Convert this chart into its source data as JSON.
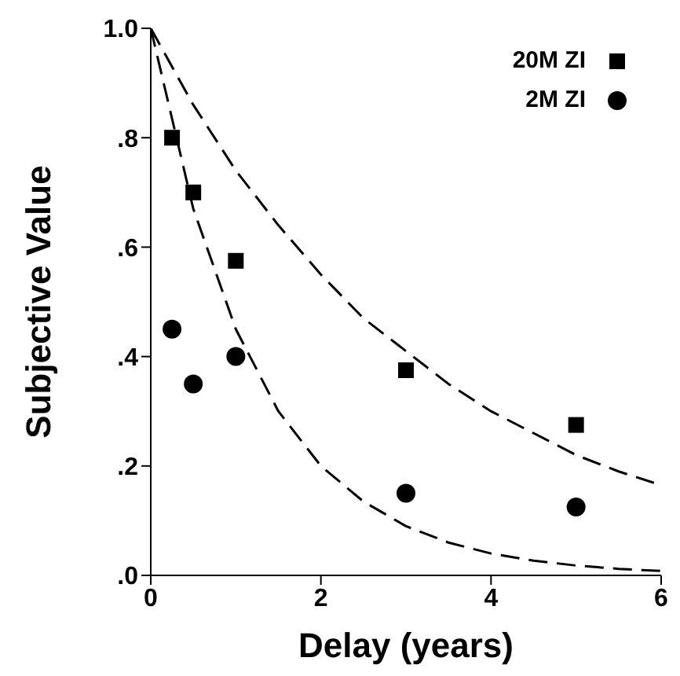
{
  "chart_data": {
    "type": "scatter",
    "xlabel": "Delay (years)",
    "ylabel": "Subjective Value",
    "xlim": [
      0,
      6
    ],
    "xticks": [
      0,
      2,
      4,
      6
    ],
    "ylim": [
      0,
      1
    ],
    "yticks": [
      {
        "value": 0,
        "label": ".0"
      },
      {
        "value": 0.2,
        "label": ".2"
      },
      {
        "value": 0.4,
        "label": ".4"
      },
      {
        "value": 0.6,
        "label": ".6"
      },
      {
        "value": 0.8,
        "label": ".8"
      },
      {
        "value": 1,
        "label": "1.0"
      }
    ],
    "legend": "top right",
    "series": [
      {
        "name": "20M ZI",
        "marker": "square",
        "color": "#000000",
        "x": [
          0.25,
          0.5,
          1,
          3,
          5
        ],
        "values": [
          0.8,
          0.7,
          0.575,
          0.375,
          0.275
        ]
      },
      {
        "name": "2M ZI",
        "marker": "circle",
        "color": "#000000",
        "x": [
          0.25,
          0.5,
          1,
          3,
          5
        ],
        "values": [
          0.45,
          0.35,
          0.4,
          0.15,
          0.125
        ]
      },
      {
        "type": "line",
        "line_style": "dashed",
        "marker": "none",
        "color": "#000000",
        "x": [
          0,
          0.5,
          1,
          1.5,
          2,
          2.5,
          3,
          3.5,
          4,
          4.5,
          5,
          5.5,
          6
        ],
        "values": [
          1,
          0.86,
          0.74,
          0.64,
          0.55,
          0.47,
          0.41,
          0.35,
          0.3,
          0.26,
          0.22,
          0.19,
          0.165
        ]
      },
      {
        "type": "line",
        "line_style": "dashed",
        "marker": "none",
        "color": "#000000",
        "x": [
          0,
          0.5,
          1,
          1.5,
          2,
          2.5,
          3,
          3.5,
          4,
          4.5,
          5,
          5.5,
          6
        ],
        "values": [
          1,
          0.67,
          0.45,
          0.3,
          0.2,
          0.135,
          0.09,
          0.06,
          0.04,
          0.027,
          0.018,
          0.012,
          0.008
        ]
      }
    ]
  }
}
